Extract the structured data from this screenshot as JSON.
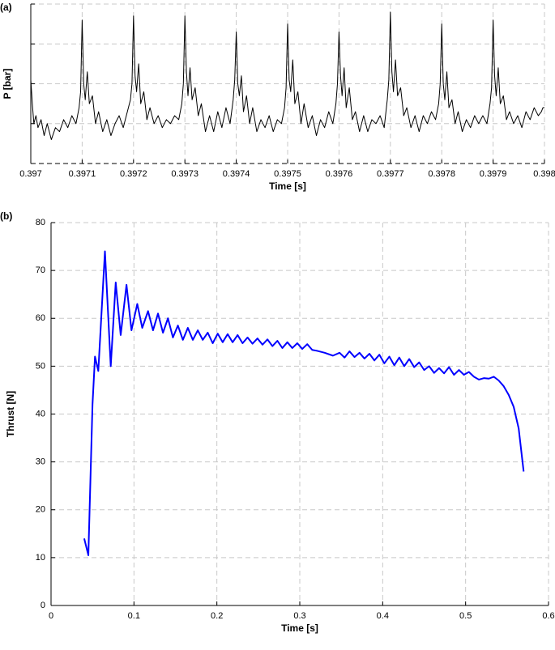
{
  "chart_data": [
    {
      "type": "line",
      "panel_label": "(a)",
      "xlabel": "Time [s]",
      "ylabel": "P [bar]",
      "color": "#000000",
      "xlim": [
        0.397,
        0.398
      ],
      "xticks": [
        0.397,
        0.3971,
        0.3972,
        0.3973,
        0.3974,
        0.3975,
        0.3976,
        0.3977,
        0.3978,
        0.3979,
        0.398
      ],
      "ylim": [
        0,
        4
      ],
      "yticks": [
        0,
        1,
        2,
        3,
        4
      ],
      "ytick_labels": false,
      "grid": true,
      "x": [
        0.397,
        0.397003,
        0.397006,
        0.39701,
        0.397014,
        0.39702,
        0.397026,
        0.397032,
        0.39704,
        0.397048,
        0.397056,
        0.397064,
        0.397072,
        0.39708,
        0.397088,
        0.397094,
        0.397097,
        0.3971,
        0.397103,
        0.397106,
        0.39711,
        0.397114,
        0.39712,
        0.397126,
        0.397132,
        0.39714,
        0.397148,
        0.397156,
        0.397164,
        0.397172,
        0.39718,
        0.397188,
        0.397194,
        0.397197,
        0.3972,
        0.397203,
        0.397206,
        0.39721,
        0.397214,
        0.39722,
        0.397226,
        0.397232,
        0.39724,
        0.397248,
        0.397256,
        0.397264,
        0.397272,
        0.39728,
        0.397288,
        0.397294,
        0.397297,
        0.3973,
        0.397303,
        0.397306,
        0.39731,
        0.397314,
        0.39732,
        0.397326,
        0.397332,
        0.39734,
        0.397348,
        0.397356,
        0.397364,
        0.397372,
        0.39738,
        0.397388,
        0.397394,
        0.397397,
        0.3974,
        0.397403,
        0.397406,
        0.39741,
        0.397414,
        0.39742,
        0.397426,
        0.397432,
        0.39744,
        0.397448,
        0.397456,
        0.397464,
        0.397472,
        0.39748,
        0.397488,
        0.397494,
        0.397497,
        0.3975,
        0.397503,
        0.397506,
        0.39751,
        0.397514,
        0.39752,
        0.397526,
        0.397532,
        0.39754,
        0.397548,
        0.397556,
        0.397564,
        0.397572,
        0.39758,
        0.397588,
        0.397594,
        0.397597,
        0.3976,
        0.397603,
        0.397606,
        0.39761,
        0.397614,
        0.39762,
        0.397626,
        0.397632,
        0.39764,
        0.397648,
        0.397656,
        0.397664,
        0.397672,
        0.39768,
        0.397688,
        0.397694,
        0.397697,
        0.3977,
        0.397703,
        0.397706,
        0.39771,
        0.397714,
        0.39772,
        0.397726,
        0.397732,
        0.39774,
        0.397748,
        0.397756,
        0.397764,
        0.397772,
        0.39778,
        0.397788,
        0.397794,
        0.397797,
        0.3978,
        0.397803,
        0.397806,
        0.39781,
        0.397814,
        0.39782,
        0.397826,
        0.397832,
        0.39784,
        0.397848,
        0.397856,
        0.397864,
        0.397872,
        0.39788,
        0.397888,
        0.397894,
        0.397897,
        0.3979,
        0.397903,
        0.397906,
        0.39791,
        0.397914,
        0.39792,
        0.397926,
        0.397932,
        0.39794,
        0.397948,
        0.397956,
        0.397964,
        0.397972,
        0.39798,
        0.397988,
        0.397994,
        0.397997,
        0.398
      ],
      "values": [
        2.1,
        1.5,
        1.0,
        1.2,
        0.9,
        1.1,
        0.7,
        1.0,
        0.6,
        0.9,
        0.8,
        1.1,
        0.9,
        1.2,
        1.0,
        1.4,
        1.8,
        3.6,
        2.0,
        1.6,
        2.3,
        1.5,
        1.7,
        1.0,
        1.3,
        0.8,
        1.1,
        0.7,
        1.0,
        1.2,
        0.9,
        1.3,
        1.6,
        2.0,
        3.7,
        2.2,
        1.8,
        2.5,
        1.5,
        1.8,
        1.1,
        1.4,
        1.0,
        1.2,
        0.9,
        1.1,
        1.0,
        1.2,
        1.1,
        1.5,
        2.0,
        3.7,
        2.3,
        1.7,
        2.4,
        1.6,
        1.9,
        1.2,
        1.5,
        0.8,
        1.2,
        0.8,
        1.3,
        0.9,
        1.4,
        1.0,
        1.6,
        2.1,
        3.3,
        2.0,
        1.7,
        2.2,
        1.3,
        1.7,
        1.0,
        1.4,
        0.8,
        1.1,
        0.9,
        1.2,
        0.8,
        1.1,
        1.0,
        1.4,
        1.9,
        3.5,
        2.1,
        1.8,
        2.6,
        1.5,
        1.8,
        1.0,
        1.5,
        0.9,
        1.2,
        0.7,
        1.1,
        0.9,
        1.3,
        1.0,
        1.5,
        2.0,
        3.3,
        2.2,
        1.7,
        2.4,
        1.4,
        1.9,
        1.1,
        1.3,
        0.8,
        1.2,
        0.8,
        1.1,
        1.0,
        1.2,
        0.9,
        1.6,
        2.1,
        3.8,
        2.3,
        1.8,
        2.6,
        1.7,
        1.9,
        1.2,
        1.4,
        0.9,
        1.2,
        0.8,
        1.2,
        1.0,
        1.3,
        1.1,
        1.5,
        2.0,
        3.5,
        2.0,
        1.6,
        2.3,
        1.4,
        1.6,
        1.0,
        1.3,
        0.8,
        1.1,
        0.9,
        1.2,
        1.0,
        1.2,
        1.0,
        1.5,
        1.9,
        3.6,
        2.2,
        1.7,
        2.4,
        1.5,
        1.7,
        1.1,
        1.3,
        1.0,
        1.2,
        0.9,
        1.3,
        1.1,
        1.4,
        1.2,
        1.3,
        1.4,
        1.4
      ]
    },
    {
      "type": "line",
      "panel_label": "(b)",
      "xlabel": "Time [s]",
      "ylabel": "Thrust [N]",
      "color": "#0000ff",
      "xlim": [
        0,
        0.6
      ],
      "xticks": [
        0,
        0.1,
        0.2,
        0.3,
        0.4,
        0.5,
        0.6
      ],
      "ylim": [
        0,
        80
      ],
      "yticks": [
        0,
        10,
        20,
        30,
        40,
        50,
        60,
        70,
        80
      ],
      "ytick_labels": true,
      "grid": true,
      "x": [
        0.04,
        0.045,
        0.05,
        0.053,
        0.057,
        0.065,
        0.072,
        0.078,
        0.084,
        0.091,
        0.097,
        0.104,
        0.11,
        0.117,
        0.123,
        0.129,
        0.135,
        0.141,
        0.147,
        0.153,
        0.159,
        0.165,
        0.171,
        0.177,
        0.183,
        0.189,
        0.195,
        0.201,
        0.207,
        0.213,
        0.219,
        0.225,
        0.231,
        0.237,
        0.243,
        0.249,
        0.255,
        0.261,
        0.267,
        0.273,
        0.279,
        0.285,
        0.291,
        0.297,
        0.303,
        0.309,
        0.315,
        0.321,
        0.33,
        0.34,
        0.348,
        0.354,
        0.36,
        0.366,
        0.372,
        0.378,
        0.384,
        0.39,
        0.396,
        0.402,
        0.408,
        0.414,
        0.42,
        0.426,
        0.432,
        0.438,
        0.444,
        0.45,
        0.456,
        0.462,
        0.468,
        0.474,
        0.48,
        0.486,
        0.492,
        0.498,
        0.504,
        0.51,
        0.516,
        0.522,
        0.528,
        0.534,
        0.54,
        0.546,
        0.552,
        0.558,
        0.564,
        0.57
      ],
      "values": [
        14,
        10.5,
        42,
        52,
        49,
        74,
        50,
        67.5,
        56.5,
        67,
        57.5,
        63,
        58,
        61.5,
        57.5,
        61,
        57,
        60,
        56,
        58.5,
        55.5,
        58,
        55.5,
        57.5,
        55.5,
        57,
        54.8,
        56.8,
        55,
        56.7,
        55,
        56.5,
        54.8,
        56,
        54.7,
        55.8,
        54.5,
        55.6,
        54.2,
        55.3,
        53.8,
        55,
        53.8,
        54.8,
        53.6,
        54.6,
        53.4,
        53.2,
        52.8,
        52.2,
        52.8,
        51.8,
        53.1,
        51.9,
        52.8,
        51.6,
        52.6,
        51.2,
        52.4,
        50.6,
        52,
        50.2,
        51.8,
        50,
        51.5,
        49.8,
        50.8,
        49.2,
        50,
        48.6,
        49.6,
        48.5,
        49.8,
        48.2,
        49.2,
        48.2,
        48.8,
        47.8,
        47.2,
        47.5,
        47.4,
        47.8,
        47,
        45.8,
        44,
        41.5,
        37,
        28
      ]
    }
  ]
}
